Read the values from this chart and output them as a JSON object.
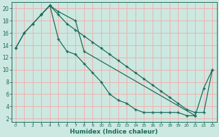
{
  "xlabel": "Humidex (Indice chaleur)",
  "bg_color": "#cce8e0",
  "grid_color": "#f0b0b0",
  "line_color": "#1a6b5a",
  "marker": "+",
  "xlim": [
    -0.5,
    23.5
  ],
  "ylim": [
    1.5,
    21
  ],
  "xticks": [
    0,
    1,
    2,
    3,
    4,
    5,
    6,
    7,
    8,
    9,
    10,
    11,
    12,
    13,
    14,
    15,
    16,
    17,
    18,
    19,
    20,
    21,
    22,
    23
  ],
  "yticks": [
    2,
    4,
    6,
    8,
    10,
    12,
    14,
    16,
    18,
    20
  ],
  "line1_x": [
    0,
    1,
    2,
    3,
    4,
    5,
    6,
    7,
    8,
    9,
    10,
    11,
    12,
    13,
    14,
    15,
    16,
    17,
    18,
    19,
    20,
    21
  ],
  "line1_y": [
    13.5,
    16.0,
    17.5,
    19.0,
    20.5,
    15.0,
    13.0,
    12.5,
    11.0,
    9.5,
    8.0,
    6.0,
    5.0,
    4.5,
    3.5,
    3.0,
    3.0,
    3.0,
    3.0,
    3.0,
    2.5,
    2.5
  ],
  "line2_x": [
    0,
    1,
    2,
    3,
    4,
    5,
    6,
    7,
    8,
    9,
    10,
    11,
    12,
    13,
    14,
    15,
    16,
    17,
    18,
    19,
    20,
    21,
    22,
    23
  ],
  "line2_y": [
    13.5,
    16.0,
    17.5,
    19.0,
    20.5,
    19.0,
    17.5,
    16.5,
    15.5,
    14.5,
    13.5,
    12.5,
    11.5,
    10.5,
    9.5,
    8.5,
    7.5,
    6.5,
    5.5,
    4.5,
    3.5,
    3.0,
    3.0,
    10.0
  ],
  "line3_x": [
    3,
    4,
    5,
    7,
    8,
    21,
    22,
    23
  ],
  "line3_y": [
    19.0,
    20.5,
    19.5,
    18.0,
    13.0,
    2.5,
    7.0,
    10.0
  ]
}
